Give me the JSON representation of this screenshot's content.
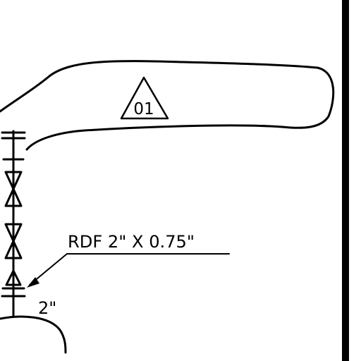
{
  "drawing": {
    "revision_tag": "01",
    "reducer_label": "RDF 2\" X 0.75\"",
    "pipe_size_label": "2\""
  }
}
